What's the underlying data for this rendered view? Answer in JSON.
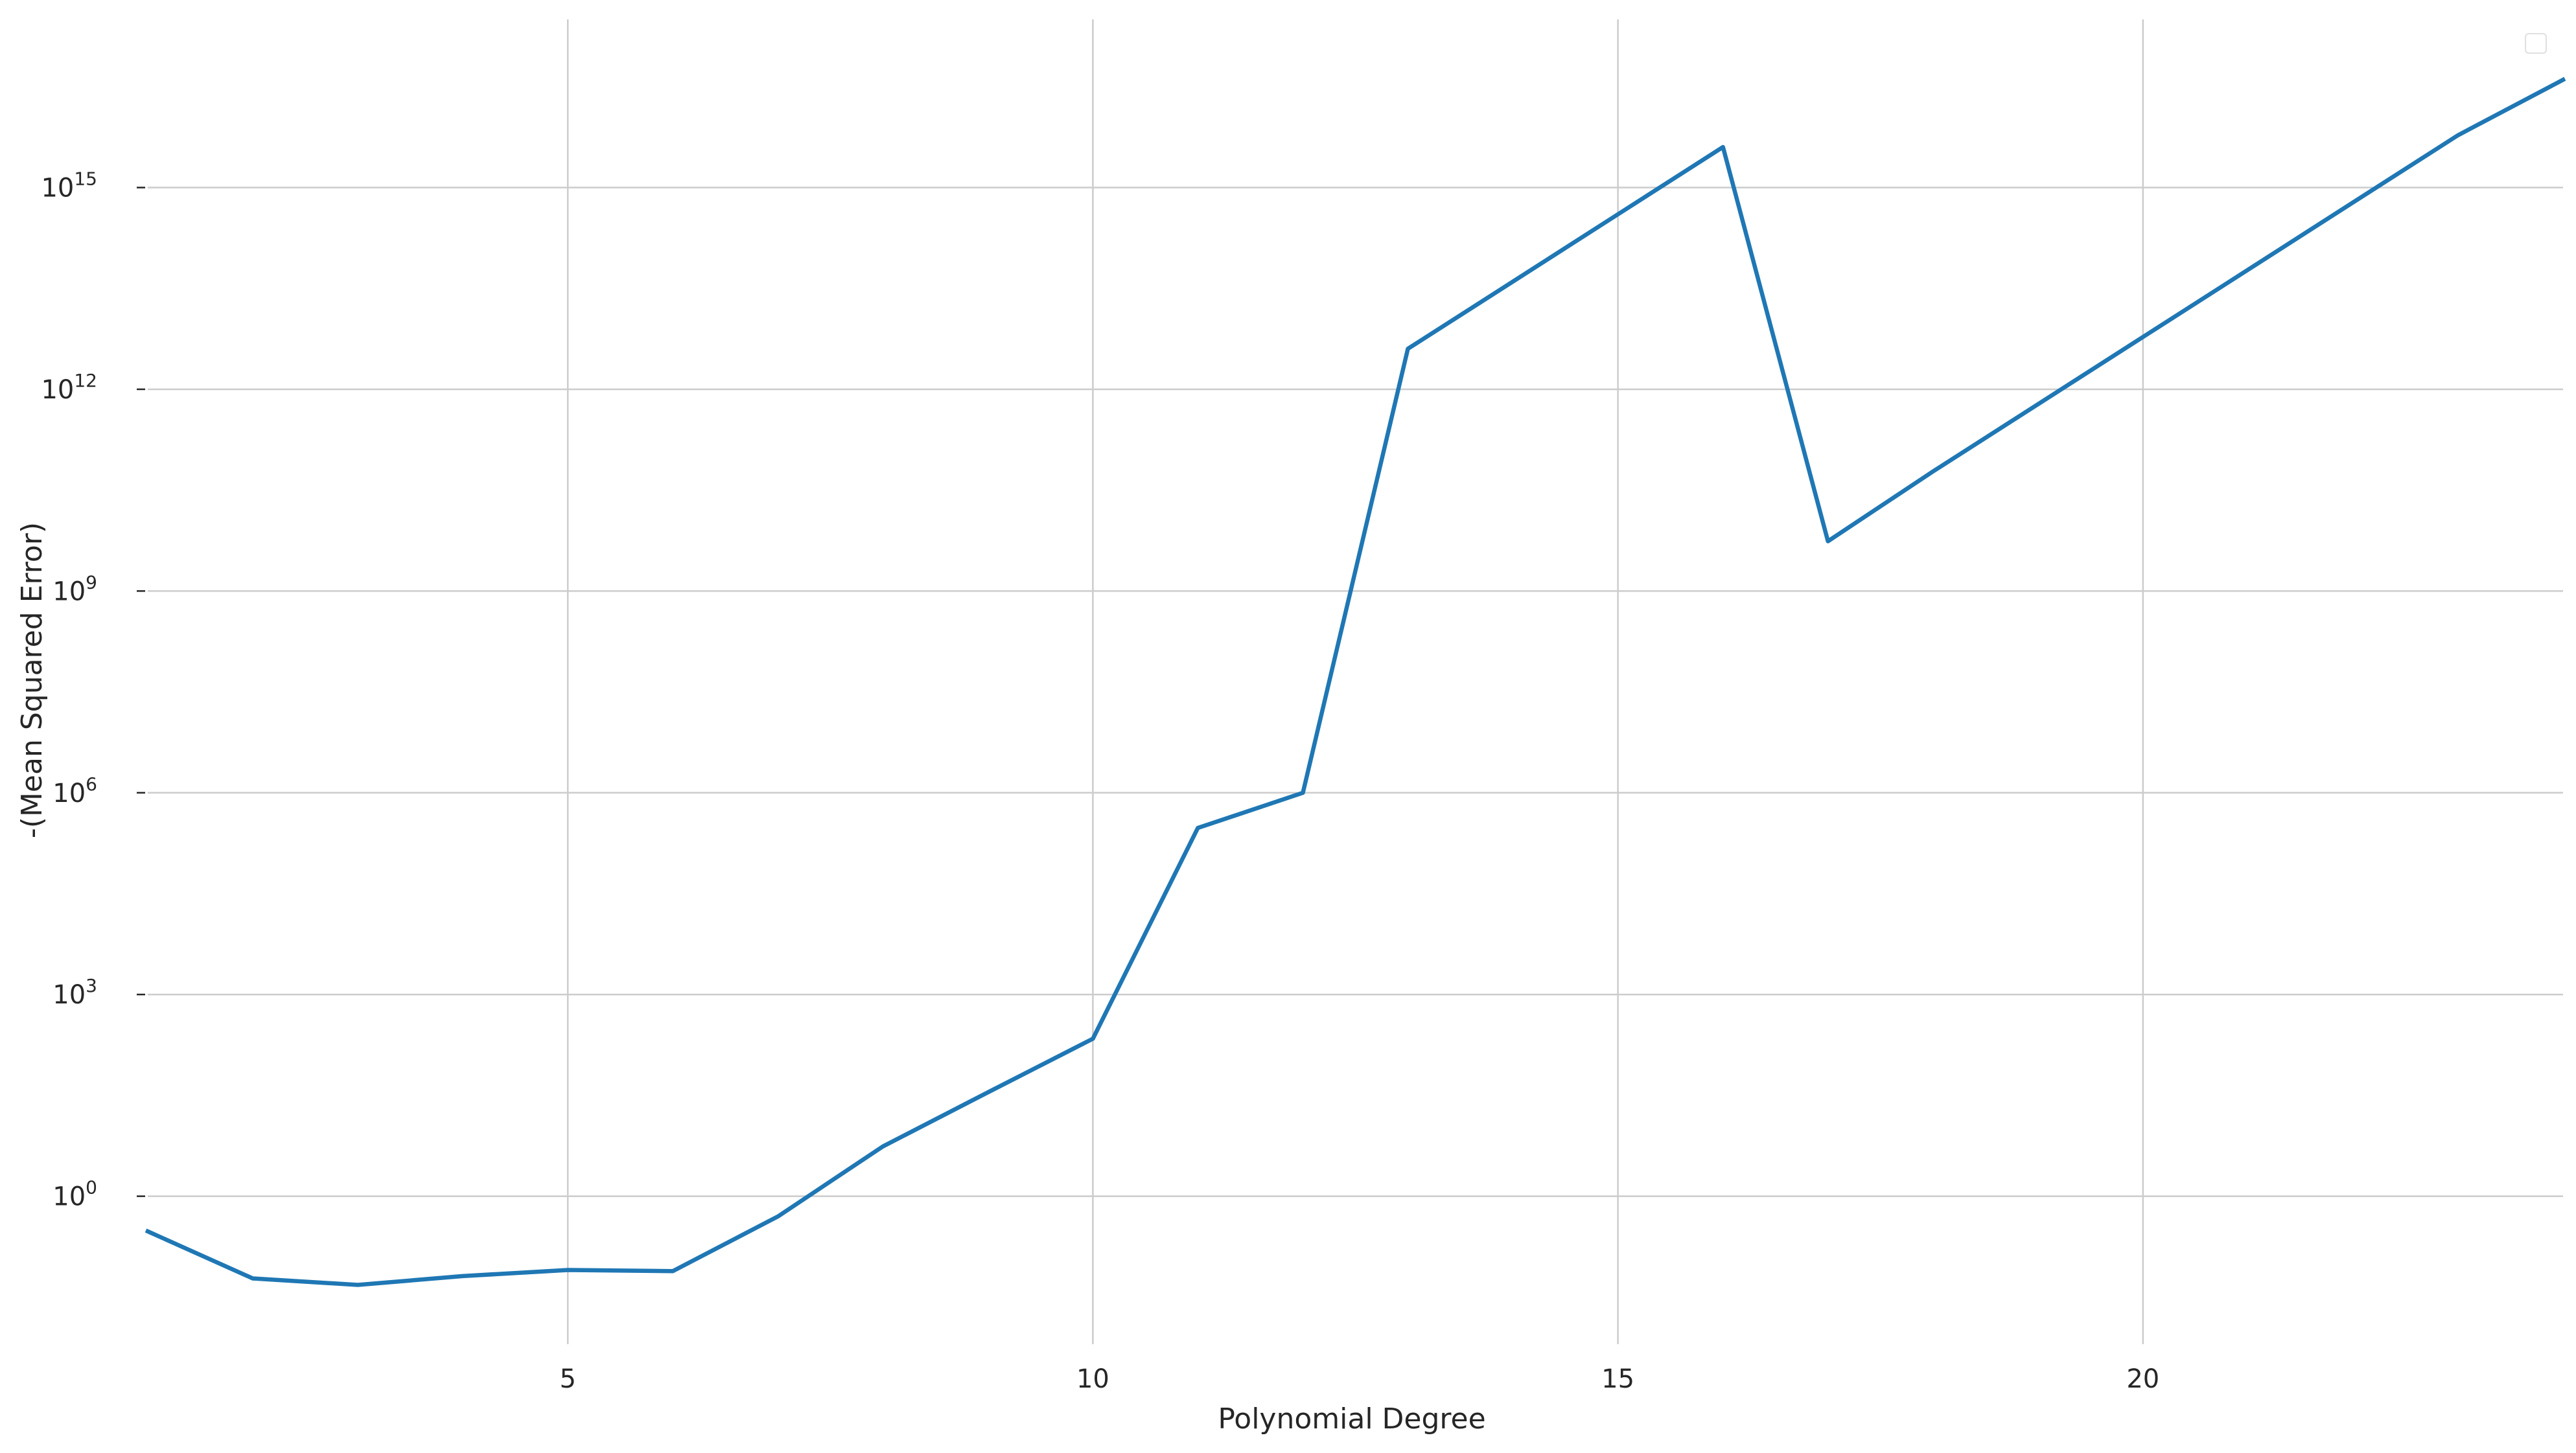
{
  "chart_data": {
    "type": "line",
    "title": "",
    "xlabel": "Polynomial Degree",
    "ylabel": "-(Mean Squared Error)",
    "x_scale": "linear",
    "y_scale": "log",
    "xlim": [
      1,
      24
    ],
    "ylim_log10": [
      -2.2,
      17.5
    ],
    "x_ticks": [
      5,
      10,
      15,
      20
    ],
    "x_tick_labels": [
      "5",
      "10",
      "15",
      "20"
    ],
    "y_ticks_log10": [
      0,
      3,
      6,
      9,
      12,
      15
    ],
    "y_tick_bases": [
      "10",
      "10",
      "10",
      "10",
      "10",
      "10"
    ],
    "y_tick_exponents": [
      "0",
      "3",
      "6",
      "9",
      "12",
      "15"
    ],
    "grid": true,
    "legend": "top-right (empty)",
    "series": [
      {
        "color": "#1f77b4",
        "x": [
          1,
          2,
          3,
          4,
          5,
          6,
          7,
          8,
          9,
          10,
          11,
          12,
          13,
          14,
          15,
          16,
          17,
          18,
          19,
          20,
          21,
          22,
          23,
          24
        ],
        "y": [
          0.3,
          0.06,
          0.048,
          0.065,
          0.08,
          0.077,
          0.5,
          5.5,
          35,
          220,
          300000,
          1000000,
          4000000000000,
          40000000000000,
          400000000000000,
          4000000000000000,
          5500000000,
          60000000000,
          600000000000,
          6000000000000,
          60000000000000,
          600000000000000,
          6000000000000000,
          40000000000000000
        ]
      }
    ]
  }
}
